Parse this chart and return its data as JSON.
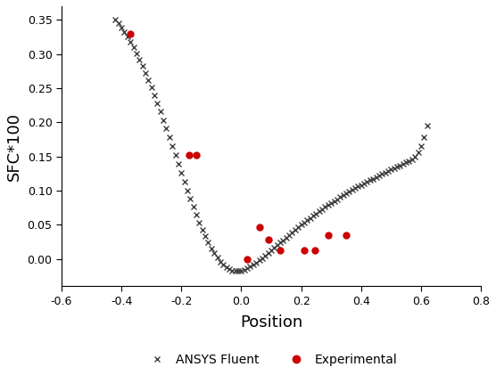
{
  "title": "",
  "xlabel": "Position",
  "ylabel": "SFC*100",
  "xlim": [
    -0.6,
    0.8
  ],
  "ylim": [
    -0.04,
    0.37
  ],
  "xticks": [
    -0.6,
    -0.4,
    -0.2,
    0.0,
    0.2,
    0.4,
    0.6,
    0.8
  ],
  "yticks": [
    0.0,
    0.05,
    0.1,
    0.15,
    0.2,
    0.25,
    0.3,
    0.35
  ],
  "fluent_x": [
    -0.42,
    -0.41,
    -0.4,
    -0.39,
    -0.38,
    -0.37,
    -0.36,
    -0.35,
    -0.34,
    -0.33,
    -0.32,
    -0.31,
    -0.3,
    -0.29,
    -0.28,
    -0.27,
    -0.26,
    -0.25,
    -0.24,
    -0.23,
    -0.22,
    -0.21,
    -0.2,
    -0.19,
    -0.18,
    -0.17,
    -0.16,
    -0.15,
    -0.14,
    -0.13,
    -0.12,
    -0.11,
    -0.1,
    -0.09,
    -0.08,
    -0.07,
    -0.06,
    -0.05,
    -0.04,
    -0.03,
    -0.02,
    -0.01,
    0.0,
    0.01,
    0.02,
    0.03,
    0.04,
    0.05,
    0.06,
    0.07,
    0.08,
    0.09,
    0.1,
    0.11,
    0.12,
    0.13,
    0.14,
    0.15,
    0.16,
    0.17,
    0.18,
    0.19,
    0.2,
    0.21,
    0.22,
    0.23,
    0.24,
    0.25,
    0.26,
    0.27,
    0.28,
    0.29,
    0.3,
    0.31,
    0.32,
    0.33,
    0.34,
    0.35,
    0.36,
    0.37,
    0.38,
    0.39,
    0.4,
    0.41,
    0.42,
    0.43,
    0.44,
    0.45,
    0.46,
    0.47,
    0.48,
    0.49,
    0.5,
    0.51,
    0.52,
    0.53,
    0.54,
    0.55,
    0.56,
    0.57,
    0.58,
    0.59,
    0.6,
    0.61,
    0.62
  ],
  "fluent_y": [
    0.35,
    0.3445,
    0.3385,
    0.332,
    0.325,
    0.3175,
    0.3095,
    0.301,
    0.292,
    0.2825,
    0.2725,
    0.262,
    0.251,
    0.2395,
    0.2278,
    0.2157,
    0.2033,
    0.1908,
    0.178,
    0.1651,
    0.152,
    0.139,
    0.126,
    0.1132,
    0.1005,
    0.0882,
    0.0762,
    0.0646,
    0.0535,
    0.043,
    0.0332,
    0.0241,
    0.0158,
    0.0083,
    0.0018,
    -0.0038,
    -0.0084,
    -0.0122,
    -0.015,
    -0.0168,
    -0.0177,
    -0.0177,
    -0.017,
    -0.0156,
    -0.0136,
    -0.0112,
    -0.0084,
    -0.0053,
    -0.002,
    0.0014,
    0.005,
    0.0087,
    0.0124,
    0.0162,
    0.02,
    0.0238,
    0.0276,
    0.0314,
    0.0352,
    0.0389,
    0.0426,
    0.0462,
    0.0498,
    0.0533,
    0.0567,
    0.0601,
    0.0634,
    0.0666,
    0.0698,
    0.0729,
    0.076,
    0.079,
    0.0819,
    0.0848,
    0.0876,
    0.0903,
    0.093,
    0.0957,
    0.0983,
    0.1009,
    0.1034,
    0.1059,
    0.1083,
    0.1107,
    0.113,
    0.1153,
    0.1176,
    0.1198,
    0.122,
    0.1242,
    0.1264,
    0.1285,
    0.1307,
    0.1328,
    0.1349,
    0.137,
    0.1391,
    0.1412,
    0.1433,
    0.1454,
    0.15,
    0.156,
    0.165,
    0.178,
    0.195
  ],
  "exp_x": [
    -0.37,
    -0.175,
    -0.15,
    0.02,
    0.06,
    0.09,
    0.13,
    0.21,
    0.245,
    0.29,
    0.35
  ],
  "exp_y": [
    0.33,
    0.152,
    0.152,
    0.0,
    0.046,
    0.028,
    0.012,
    0.012,
    0.012,
    0.035,
    0.035
  ],
  "fluent_color": "#404040",
  "exp_color": "#cc0000",
  "fluent_marker": "x",
  "exp_marker": "o",
  "fluent_markersize": 4,
  "exp_markersize": 5,
  "legend_fontsize": 10,
  "axis_label_fontsize": 13,
  "tick_fontsize": 9
}
